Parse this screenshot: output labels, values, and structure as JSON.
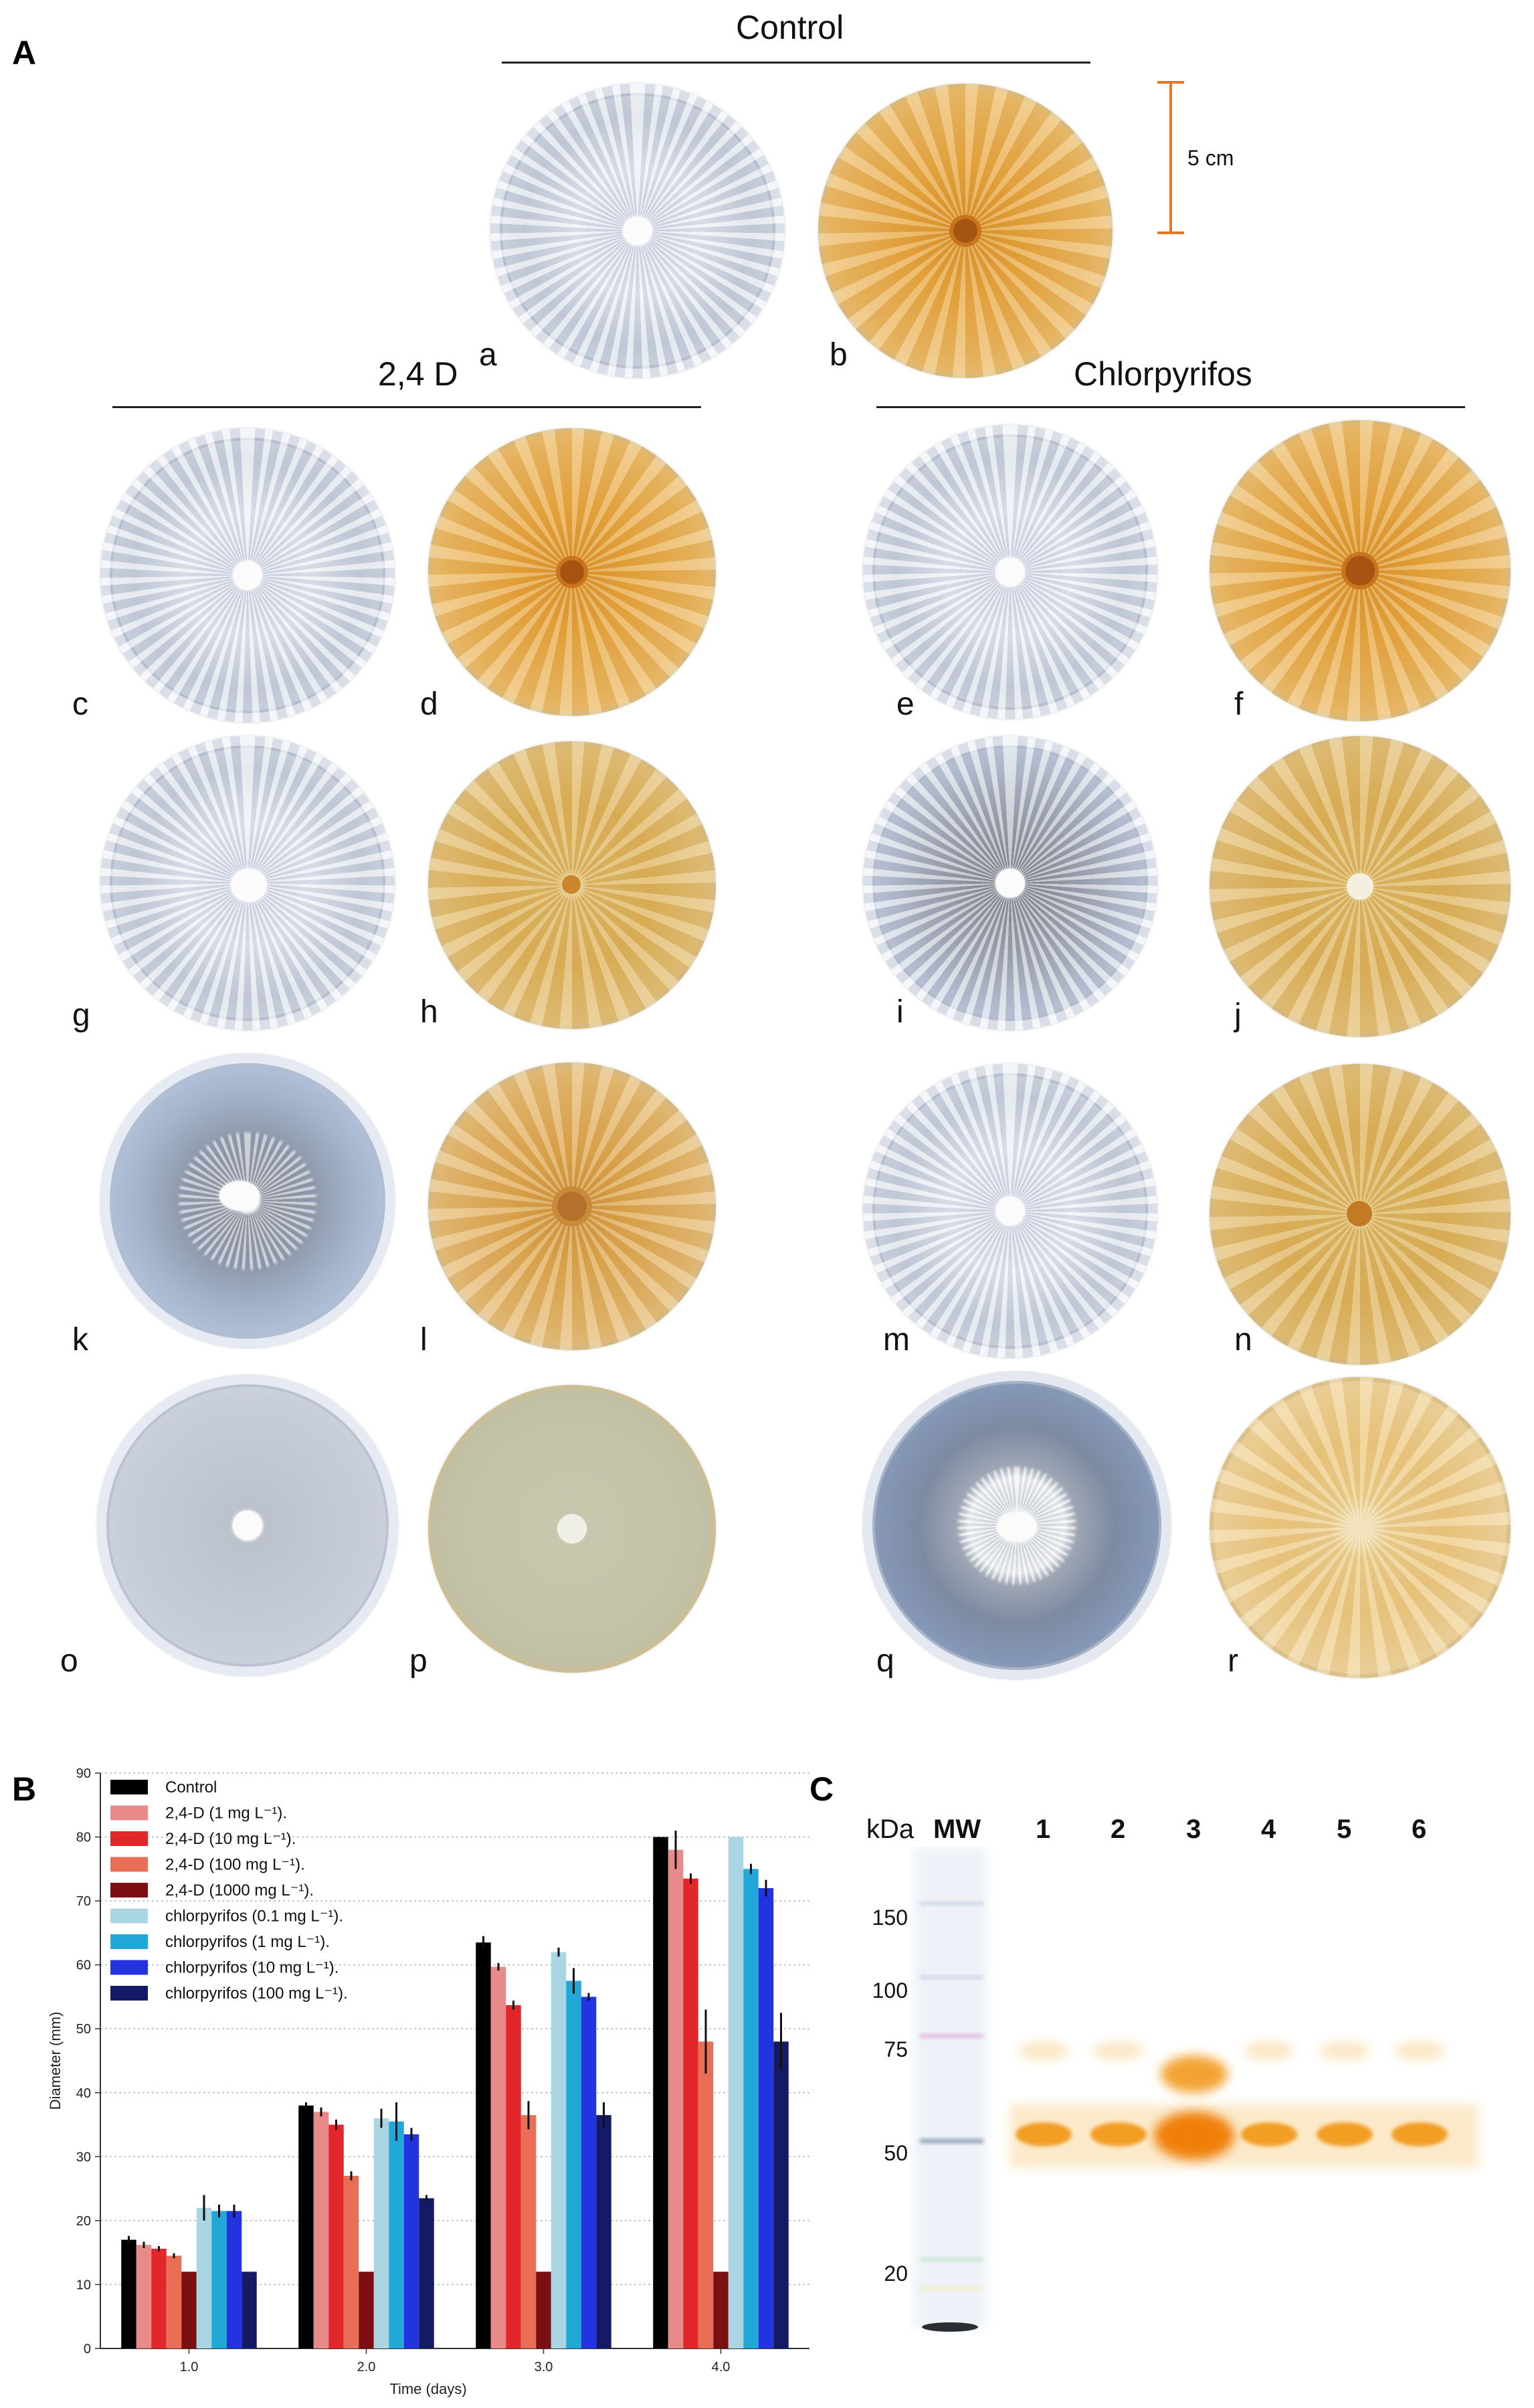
{
  "panels": {
    "A": "A",
    "B": "B",
    "C": "C"
  },
  "panel_a": {
    "titles": {
      "control": "Control",
      "d24": "2,4 D",
      "chlorpyrifos": "Chlorpyrifos"
    },
    "scale_bar_label": "5 cm",
    "colors": {
      "scale_bar": "#e07a2a"
    },
    "dish_labels": [
      "a",
      "b",
      "c",
      "d",
      "e",
      "f",
      "g",
      "h",
      "i",
      "j",
      "k",
      "l",
      "m",
      "n",
      "o",
      "p",
      "q",
      "r"
    ]
  },
  "chart_data": {
    "type": "bar",
    "xlabel": "Time (days)",
    "ylabel": "Diameter (mm)",
    "ylim": [
      0,
      90
    ],
    "yticks": [
      0,
      10,
      20,
      30,
      40,
      50,
      60,
      70,
      80,
      90
    ],
    "categories": [
      "1.0",
      "2.0",
      "3.0",
      "4.0"
    ],
    "grid": true,
    "legend_position": "top-left",
    "series": [
      {
        "name": "Control",
        "color": "#000000",
        "values": [
          17,
          38,
          63.5,
          80
        ],
        "errors": [
          0.6,
          0.5,
          1,
          0
        ]
      },
      {
        "name": "2,4-D (1 mg L⁻¹).",
        "color": "#e88a8a",
        "values": [
          16.2,
          37,
          59.7,
          78
        ],
        "errors": [
          0.5,
          0.7,
          0.6,
          3
        ]
      },
      {
        "name": "2,4-D (10 mg L⁻¹).",
        "color": "#e3262a",
        "values": [
          15.6,
          35,
          53.7,
          73.5
        ],
        "errors": [
          0.4,
          0.8,
          0.7,
          0.8
        ]
      },
      {
        "name": "2,4-D (100 mg L⁻¹).",
        "color": "#ea6d55",
        "values": [
          14.5,
          27,
          36.5,
          48
        ],
        "errors": [
          0.4,
          0.7,
          2.2,
          5
        ]
      },
      {
        "name": "2,4-D (1000 mg L⁻¹).",
        "color": "#7c0f12",
        "values": [
          12,
          12,
          12,
          12
        ],
        "errors": [
          0,
          0,
          0,
          0
        ]
      },
      {
        "name": "chlorpyrifos (0.1 mg L⁻¹).",
        "color": "#a9d6e2",
        "values": [
          22,
          36,
          62,
          80
        ],
        "errors": [
          2,
          1.5,
          0.7,
          0
        ]
      },
      {
        "name": "chlorpyrifos (1 mg L⁻¹).",
        "color": "#1fa8d8",
        "values": [
          21.5,
          35.5,
          57.5,
          75
        ],
        "errors": [
          1,
          3,
          2,
          0.8
        ]
      },
      {
        "name": "chlorpyrifos (10 mg L⁻¹).",
        "color": "#2234e0",
        "values": [
          21.5,
          33.5,
          55,
          72
        ],
        "errors": [
          1,
          1,
          0.6,
          1.3
        ]
      },
      {
        "name": "chlorpyrifos (100 mg L⁻¹).",
        "color": "#151a66",
        "values": [
          12,
          23.5,
          36.5,
          48
        ],
        "errors": [
          0,
          0.5,
          2,
          4.5
        ]
      }
    ]
  },
  "panel_c": {
    "unit_label": "kDa",
    "mw_label": "MW",
    "lane_labels": [
      "1",
      "2",
      "3",
      "4",
      "5",
      "6"
    ],
    "mw_markers": [
      "150",
      "100",
      "75",
      "50",
      "20"
    ],
    "colors": {
      "band": "#f29a1a",
      "band_core": "#f07a00"
    }
  }
}
